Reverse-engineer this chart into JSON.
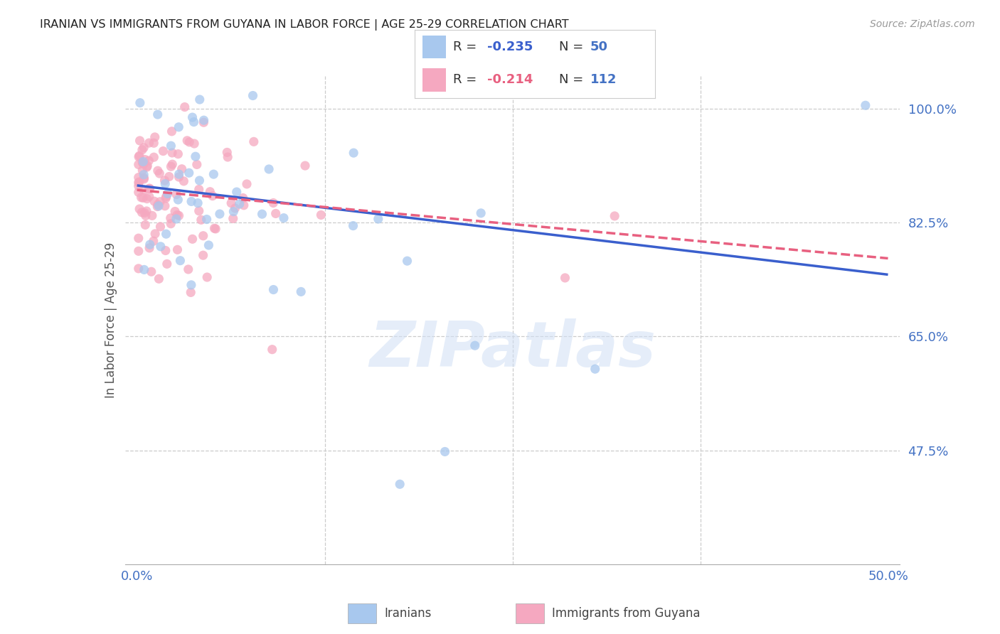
{
  "title": "IRANIAN VS IMMIGRANTS FROM GUYANA IN LABOR FORCE | AGE 25-29 CORRELATION CHART",
  "source": "Source: ZipAtlas.com",
  "ylabel": "In Labor Force | Age 25-29",
  "ytick_labels": [
    "100.0%",
    "82.5%",
    "65.0%",
    "47.5%"
  ],
  "ytick_values": [
    1.0,
    0.825,
    0.65,
    0.475
  ],
  "xlim": [
    0.0,
    0.5
  ],
  "ylim": [
    0.3,
    1.05
  ],
  "watermark": "ZIPatlas",
  "blue_color": "#A8C8EE",
  "pink_color": "#F5A8C0",
  "line_blue": "#3A5FCD",
  "line_pink": "#E86080",
  "title_color": "#222222",
  "axis_label_color": "#4472C4",
  "iran_line_x0": 0.0,
  "iran_line_y0": 0.882,
  "iran_line_x1": 0.5,
  "iran_line_y1": 0.745,
  "guyana_line_x0": 0.0,
  "guyana_line_y0": 0.875,
  "guyana_line_x1": 0.5,
  "guyana_line_y1": 0.77
}
